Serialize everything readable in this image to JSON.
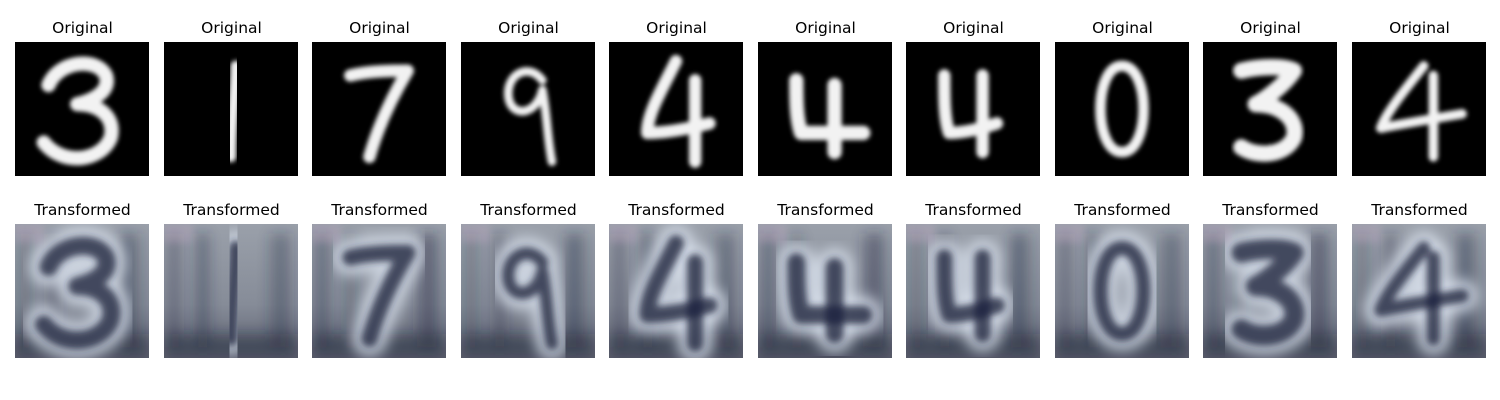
{
  "original_title": "Original",
  "transformed_title": "Transformed",
  "digits": [
    "3",
    "1",
    "7",
    "9",
    "4",
    "4",
    "4",
    "0",
    "3",
    "4"
  ],
  "colors": {
    "background": "#ffffff",
    "digit_stroke": "#f2f2f2",
    "digit_background": "#000000",
    "transformed_base": "#8e929c",
    "transformed_dark": "#1e2440",
    "transformed_light": "#dde6f2"
  }
}
